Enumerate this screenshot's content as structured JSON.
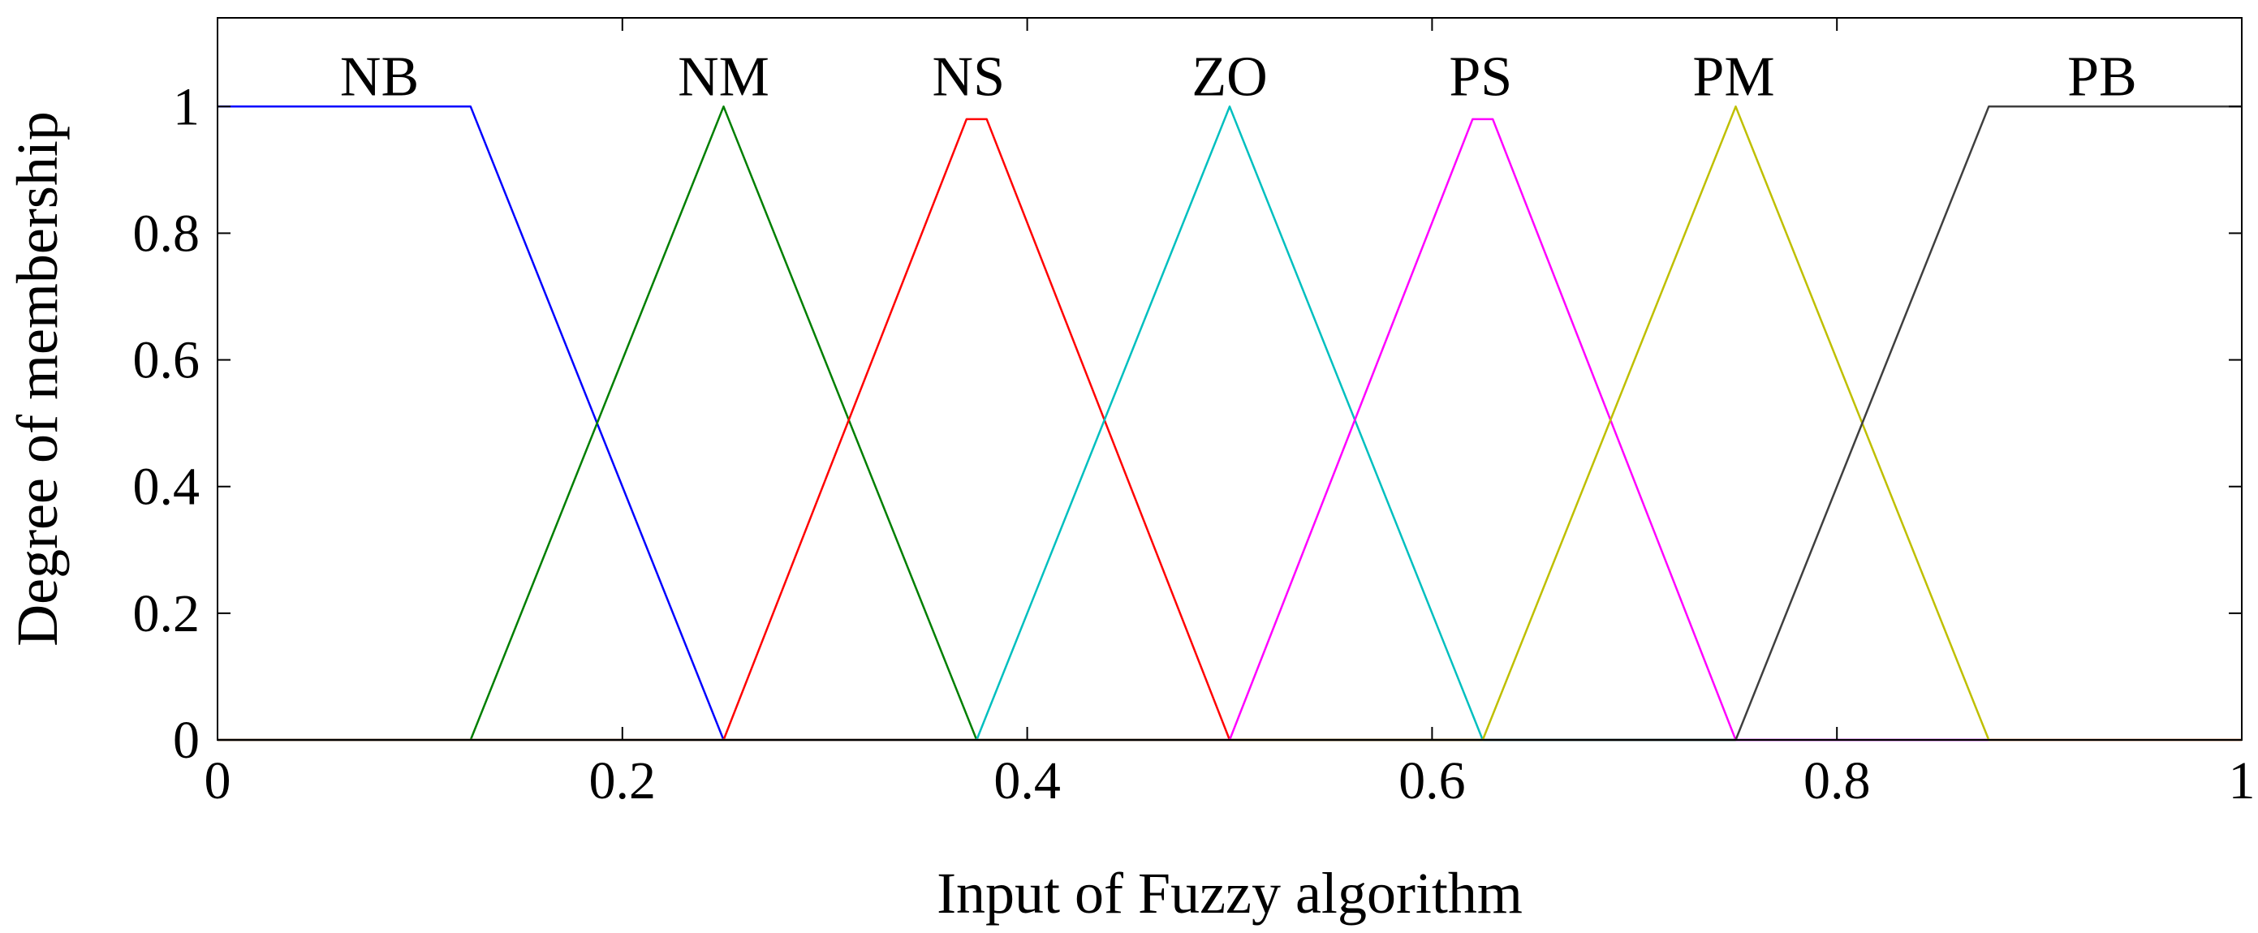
{
  "chart_data": {
    "type": "line",
    "title": "",
    "xlabel": "Input of Fuzzy algorithm",
    "ylabel": "Degree of membership",
    "xlim": [
      0,
      1
    ],
    "ylim": [
      0,
      1.14
    ],
    "grid": false,
    "x_ticks": [
      0,
      0.2,
      0.4,
      0.6,
      0.8,
      1
    ],
    "x_tick_labels": [
      "0",
      "0.2",
      "0.4",
      "0.6",
      "0.8",
      "1"
    ],
    "y_ticks": [
      0,
      0.2,
      0.4,
      0.6,
      0.8,
      1
    ],
    "y_tick_labels": [
      "0",
      "0.2",
      "0.4",
      "0.6",
      "0.8",
      "1"
    ],
    "series": [
      {
        "name": "NB",
        "color": "#0000ff",
        "label_x": 0.08,
        "x": [
          0,
          0.125,
          0.25,
          1
        ],
        "y": [
          1,
          1,
          0,
          0
        ]
      },
      {
        "name": "NM",
        "color": "#007f00",
        "label_x": 0.25,
        "x": [
          0,
          0.125,
          0.25,
          0.375,
          1
        ],
        "y": [
          0,
          0,
          1,
          0,
          0
        ]
      },
      {
        "name": "NS",
        "color": "#ff0000",
        "label_x": 0.371,
        "x": [
          0,
          0.25,
          0.37,
          0.38,
          0.5,
          1
        ],
        "y": [
          0,
          0,
          0.98,
          0.98,
          0,
          0
        ]
      },
      {
        "name": "ZO",
        "color": "#00bfbf",
        "label_x": 0.5,
        "x": [
          0,
          0.375,
          0.5,
          0.625,
          1
        ],
        "y": [
          0,
          0,
          1,
          0,
          0
        ]
      },
      {
        "name": "PS",
        "color": "#ff00ff",
        "label_x": 0.624,
        "x": [
          0,
          0.5,
          0.62,
          0.63,
          0.75,
          1
        ],
        "y": [
          0,
          0,
          0.98,
          0.98,
          0,
          0
        ]
      },
      {
        "name": "PM",
        "color": "#bfbf00",
        "label_x": 0.749,
        "x": [
          0,
          0.625,
          0.75,
          0.875,
          1
        ],
        "y": [
          0,
          0,
          1,
          0,
          0
        ]
      },
      {
        "name": "PB",
        "color": "#3f3f3f",
        "label_x": 0.931,
        "x": [
          0,
          0.75,
          0.875,
          1
        ],
        "y": [
          0,
          0,
          1,
          1
        ]
      }
    ]
  }
}
